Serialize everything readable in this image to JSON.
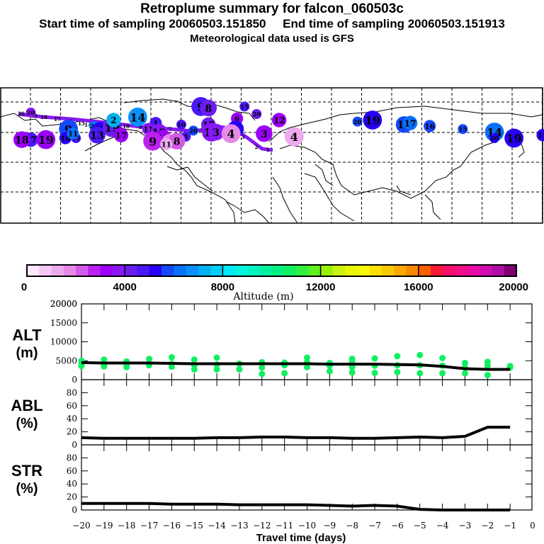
{
  "header": {
    "title": "Retroplume summary for falcon_060503c",
    "subtitle": "Start time of sampling 20060503.151850     End time of sampling 20060503.151913",
    "met_note": "Meteorological data used is GFS"
  },
  "colorbar": {
    "label": "Altitude (m)",
    "min": 0,
    "max": 20000,
    "tick_labels": [
      "0",
      "4000",
      "8000",
      "12000",
      "16000",
      "20000"
    ],
    "tick_values": [
      0,
      4000,
      8000,
      12000,
      16000,
      20000
    ],
    "colors": [
      "#ffe6fa",
      "#f5c8f5",
      "#eeaaee",
      "#e58ae8",
      "#d45ae8",
      "#bb22f0",
      "#9c00f8",
      "#8818f4",
      "#6a1ef0",
      "#4a18f8",
      "#2800f8",
      "#1448f8",
      "#0a70f8",
      "#0a90f8",
      "#00b0f0",
      "#00cef8",
      "#00e8f4",
      "#00f4e0",
      "#00f4c0",
      "#00f0a0",
      "#00f080",
      "#10f060",
      "#30f040",
      "#60f020",
      "#98f000",
      "#c8f010",
      "#e8f800",
      "#f8f800",
      "#f8e000",
      "#f8c800",
      "#f8a800",
      "#f88800",
      "#f86000",
      "#f81838",
      "#f8106a",
      "#f01088",
      "#e80ca4",
      "#d00cb0",
      "#b00ca8",
      "#800070"
    ]
  },
  "map_points": [
    {
      "label": "20",
      "lon": -170,
      "lat": 63,
      "alt": 3500
    },
    {
      "label": "17",
      "lon": -170,
      "lat": 45,
      "alt": 4600
    },
    {
      "label": "19",
      "lon": -160,
      "lat": 45,
      "alt": 3000
    },
    {
      "label": "18",
      "lon": -176,
      "lat": 45,
      "alt": 3400
    },
    {
      "label": "9",
      "lon": -145,
      "lat": 52,
      "alt": 5800
    },
    {
      "label": "16",
      "lon": -147,
      "lat": 46,
      "alt": 5200
    },
    {
      "label": "15",
      "lon": -140,
      "lat": 46,
      "alt": 4900
    },
    {
      "label": "11",
      "lon": -142,
      "lat": 49,
      "alt": 6300
    },
    {
      "label": "20",
      "lon": -128,
      "lat": 54,
      "alt": 6200
    },
    {
      "label": "12",
      "lon": -124,
      "lat": 52,
      "alt": 5300
    },
    {
      "label": "13",
      "lon": -126,
      "lat": 48,
      "alt": 4900
    },
    {
      "label": "19",
      "lon": -116,
      "lat": 53,
      "alt": 4200
    },
    {
      "label": "2",
      "lon": -115,
      "lat": 58,
      "alt": 7000
    },
    {
      "label": "17",
      "lon": -110,
      "lat": 48,
      "alt": 3200
    },
    {
      "label": "14",
      "lon": -99,
      "lat": 60,
      "alt": 6800
    },
    {
      "label": "1",
      "lon": -87,
      "lat": 56,
      "alt": 4700
    },
    {
      "label": "11",
      "lon": -92,
      "lat": 52,
      "alt": 3800
    },
    {
      "label": "18",
      "lon": -85,
      "lat": 50,
      "alt": 3700
    },
    {
      "label": "10",
      "lon": -70,
      "lat": 55,
      "alt": 4500
    },
    {
      "label": "5",
      "lon": -67,
      "lat": 47,
      "alt": 4700
    },
    {
      "label": "20",
      "lon": -62,
      "lat": 51,
      "alt": 5800
    },
    {
      "label": "17",
      "lon": -52,
      "lat": 55,
      "alt": 4200
    },
    {
      "label": "19",
      "lon": -50,
      "lat": 50,
      "alt": 3800
    },
    {
      "label": "3",
      "lon": -47,
      "lat": 50,
      "alt": 3600
    },
    {
      "label": "13",
      "lon": -82,
      "lat": 46,
      "alt": 3000
    },
    {
      "label": "9",
      "lon": -89,
      "lat": 44,
      "alt": 2600
    },
    {
      "label": "12",
      "lon": -78,
      "lat": 44,
      "alt": 1800
    },
    {
      "label": "8",
      "lon": -73,
      "lat": 44,
      "alt": 2100
    },
    {
      "label": "11",
      "lon": -80,
      "lat": 42,
      "alt": 1300
    },
    {
      "label": "6",
      "lon": -33,
      "lat": 59,
      "alt": 3400
    },
    {
      "label": "3",
      "lon": -34,
      "lat": 52,
      "alt": 5200
    },
    {
      "label": "4",
      "lon": -37,
      "lat": 49,
      "alt": 1800
    },
    {
      "label": "3",
      "lon": -15,
      "lat": 49,
      "alt": 3200
    },
    {
      "label": "9",
      "lon": -57,
      "lat": 67,
      "alt": 4600
    },
    {
      "label": "8",
      "lon": -52,
      "lat": 66,
      "alt": 4100
    },
    {
      "label": "15",
      "lon": -28,
      "lat": 67,
      "alt": 4600
    },
    {
      "label": "20",
      "lon": -20,
      "lat": 62,
      "alt": 4300
    },
    {
      "label": "12",
      "lon": -5,
      "lat": 58,
      "alt": 3100
    },
    {
      "label": "5",
      "lon": 2,
      "lat": 48,
      "alt": 1500
    },
    {
      "label": "4",
      "lon": 5,
      "lat": 47,
      "alt": 1100
    },
    {
      "label": "20",
      "lon": 47,
      "lat": 57,
      "alt": 5600
    },
    {
      "label": "19",
      "lon": 57,
      "lat": 58,
      "alt": 5400
    },
    {
      "label": "18",
      "lon": 78,
      "lat": 55,
      "alt": 5600
    },
    {
      "label": "17",
      "lon": 82,
      "lat": 56,
      "alt": 6000
    },
    {
      "label": "16",
      "lon": 95,
      "lat": 54,
      "alt": 5700
    },
    {
      "label": "15",
      "lon": 117,
      "lat": 52,
      "alt": 5800
    },
    {
      "label": "14",
      "lon": 138,
      "lat": 50,
      "alt": 6000
    },
    {
      "label": "20",
      "lon": 138,
      "lat": 46,
      "alt": 5400
    },
    {
      "label": "19",
      "lon": 151,
      "lat": 46,
      "alt": 5300
    },
    {
      "label": "11",
      "lon": 170,
      "lat": 48,
      "alt": 5100
    },
    {
      "label": "18",
      "lon": 177,
      "lat": 46,
      "alt": 4900
    },
    {
      "label": "16",
      "lon": 187,
      "lat": 46,
      "alt": 3600
    }
  ],
  "plume_track": {
    "color": "#8818f4",
    "labels": [
      "20",
      "19",
      "18",
      "17",
      "16",
      "15",
      "14",
      "13",
      "12",
      "11",
      "10",
      "9",
      "8",
      "7",
      "6",
      "5",
      "4",
      "3",
      "2",
      "1"
    ]
  },
  "chart_data": [
    {
      "type": "line",
      "panel": "ALT",
      "ylabel": "ALT",
      "yunit": "(m)",
      "ylim": [
        0,
        20000
      ],
      "yticks": [
        0,
        5000,
        10000,
        15000,
        20000
      ],
      "ytick_labels": [
        "0",
        "5000",
        "10000",
        "15000",
        "20000"
      ],
      "x": [
        -20,
        -19,
        -18,
        -17,
        -16,
        -15,
        -14,
        -13,
        -12,
        -11,
        -10,
        -9,
        -8,
        -7,
        -6,
        -5,
        -4,
        -3,
        -2,
        -1
      ],
      "series": [
        {
          "name": "mean altitude",
          "color": "#000000",
          "values": [
            4500,
            4400,
            4400,
            4400,
            4300,
            4200,
            4200,
            4200,
            4200,
            4200,
            4200,
            4100,
            4100,
            4100,
            4000,
            3900,
            3500,
            2900,
            2700,
            2700
          ]
        }
      ],
      "scatter": {
        "color": "#10f060",
        "points": [
          [
            -20,
            4200
          ],
          [
            -20,
            5000
          ],
          [
            -20,
            3600
          ],
          [
            -19,
            4200
          ],
          [
            -19,
            5300
          ],
          [
            -19,
            3500
          ],
          [
            -18,
            4000
          ],
          [
            -18,
            4800
          ],
          [
            -18,
            3300
          ],
          [
            -17,
            4300
          ],
          [
            -17,
            5500
          ],
          [
            -17,
            3800
          ],
          [
            -16,
            4200
          ],
          [
            -16,
            5900
          ],
          [
            -16,
            3400
          ],
          [
            -15,
            3800
          ],
          [
            -15,
            5300
          ],
          [
            -15,
            2700
          ],
          [
            -14,
            4000
          ],
          [
            -14,
            5800
          ],
          [
            -14,
            2700
          ],
          [
            -13,
            4200
          ],
          [
            -13,
            2700
          ],
          [
            -12,
            4600
          ],
          [
            -12,
            3200
          ],
          [
            -12,
            1500
          ],
          [
            -11,
            4500
          ],
          [
            -11,
            3800
          ],
          [
            -11,
            1700
          ],
          [
            -10,
            4600
          ],
          [
            -10,
            5800
          ],
          [
            -10,
            3300
          ],
          [
            -9,
            4400
          ],
          [
            -9,
            3700
          ],
          [
            -9,
            2200
          ],
          [
            -8,
            4500
          ],
          [
            -8,
            5500
          ],
          [
            -8,
            3300
          ],
          [
            -8,
            1900
          ],
          [
            -7,
            3700
          ],
          [
            -7,
            5600
          ],
          [
            -7,
            1800
          ],
          [
            -6,
            3800
          ],
          [
            -6,
            6200
          ],
          [
            -6,
            2000
          ],
          [
            -5,
            3800
          ],
          [
            -5,
            6500
          ],
          [
            -5,
            1700
          ],
          [
            -4,
            3700
          ],
          [
            -4,
            5700
          ],
          [
            -4,
            1700
          ],
          [
            -3,
            3200
          ],
          [
            -3,
            4400
          ],
          [
            -3,
            1700
          ],
          [
            -2,
            3700
          ],
          [
            -2,
            4700
          ],
          [
            -2,
            1200
          ],
          [
            -1,
            3200
          ],
          [
            -1,
            3600
          ]
        ]
      },
      "xlim": [
        -20,
        0
      ]
    },
    {
      "type": "line",
      "panel": "ABL",
      "ylabel": "ABL",
      "yunit": "(%)",
      "ylim": [
        0,
        100
      ],
      "yticks": [
        0,
        20,
        40,
        60,
        80
      ],
      "ytick_labels": [
        "0",
        "20",
        "40",
        "60",
        "80"
      ],
      "x": [
        -20,
        -19,
        -18,
        -17,
        -16,
        -15,
        -14,
        -13,
        -12,
        -11,
        -10,
        -9,
        -8,
        -7,
        -6,
        -5,
        -4,
        -3,
        -2,
        -1
      ],
      "series": [
        {
          "name": "ABL fraction",
          "color": "#000000",
          "values": [
            11,
            10,
            10,
            10,
            10,
            10,
            11,
            11,
            12,
            12,
            11,
            11,
            10,
            10,
            11,
            12,
            11,
            13,
            27,
            27
          ]
        }
      ],
      "xlim": [
        -20,
        0
      ]
    },
    {
      "type": "line",
      "panel": "STR",
      "ylabel": "STR",
      "yunit": "(%)",
      "ylim": [
        0,
        100
      ],
      "yticks": [
        0,
        20,
        40,
        60,
        80
      ],
      "ytick_labels": [
        "0",
        "20",
        "40",
        "60",
        "80"
      ],
      "x": [
        -20,
        -19,
        -18,
        -17,
        -16,
        -15,
        -14,
        -13,
        -12,
        -11,
        -10,
        -9,
        -8,
        -7,
        -6,
        -5,
        -4,
        -3,
        -2,
        -1
      ],
      "series": [
        {
          "name": "stratospheric fraction",
          "color": "#000000",
          "values": [
            10,
            10,
            10,
            10,
            9,
            9,
            9,
            8,
            8,
            8,
            8,
            7,
            6,
            7,
            6,
            1,
            0,
            0,
            0,
            0
          ]
        }
      ],
      "xlim": [
        -20,
        0
      ],
      "xticks": [
        -20,
        -19,
        -18,
        -17,
        -16,
        -15,
        -14,
        -13,
        -12,
        -11,
        -10,
        -9,
        -8,
        -7,
        -6,
        -5,
        -4,
        -3,
        -2,
        -1,
        0
      ],
      "xtick_labels": [
        "−20",
        "−19",
        "−18",
        "−17",
        "−16",
        "−15",
        "−14",
        "−13",
        "−12",
        "−11",
        "−10",
        "−9",
        "−8",
        "−7",
        "−6",
        "−5",
        "−4",
        "−3",
        "−2",
        "−1",
        "0"
      ],
      "xlabel": "Travel time (days)"
    }
  ]
}
